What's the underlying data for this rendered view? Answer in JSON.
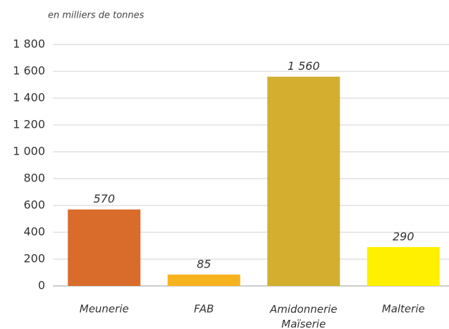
{
  "chart_data": {
    "type": "bar",
    "subtitle": "en milliers de tonnes",
    "categories": [
      "Meunerie",
      "FAB",
      "Amidonnerie Maïserie",
      "Malterie"
    ],
    "values": [
      570,
      85,
      1560,
      290
    ],
    "value_labels": [
      "570",
      "85",
      "1 560",
      "290"
    ],
    "colors": [
      "#d96c2a",
      "#f6b31d",
      "#d3ae2f",
      "#fff000"
    ],
    "ylim": [
      0,
      1800
    ],
    "yticks": [
      0,
      200,
      400,
      600,
      800,
      {
        "value": 1000,
        "label": "1 000"
      },
      {
        "value": 1200,
        "label": "1 200"
      },
      {
        "value": 1400,
        "label": "1 400"
      },
      {
        "value": 1600,
        "label": "1 600"
      },
      {
        "value": 1800,
        "label": "1 800"
      }
    ],
    "grid": true
  }
}
